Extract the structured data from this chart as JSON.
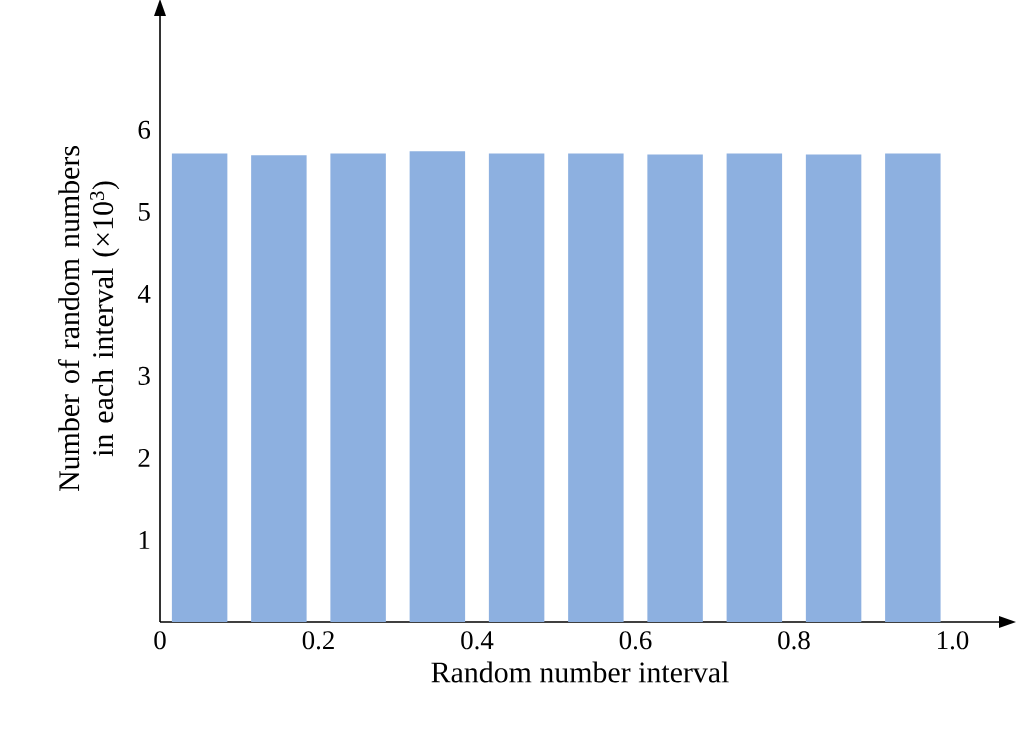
{
  "chart_data": {
    "type": "bar",
    "xlabel": "Random number interval",
    "ylabel": "Number of random numbers in each interval (×10$^{3}$)",
    "x": [
      0.05,
      0.15,
      0.25,
      0.35,
      0.45,
      0.55,
      0.65,
      0.75,
      0.85,
      0.95
    ],
    "values": [
      5.71,
      5.69,
      5.71,
      5.74,
      5.71,
      5.71,
      5.7,
      5.71,
      5.7,
      5.71
    ],
    "color": "#8db0e0",
    "xlim": [
      0,
      1.06
    ],
    "xticks": [
      0,
      0.2,
      0.4,
      0.6,
      0.8,
      {
        "value": 1,
        "label": "1.0"
      }
    ],
    "ylim": [
      0,
      7.4
    ],
    "yticks": [
      1,
      2,
      3,
      4,
      5,
      6
    ],
    "grid": false
  }
}
